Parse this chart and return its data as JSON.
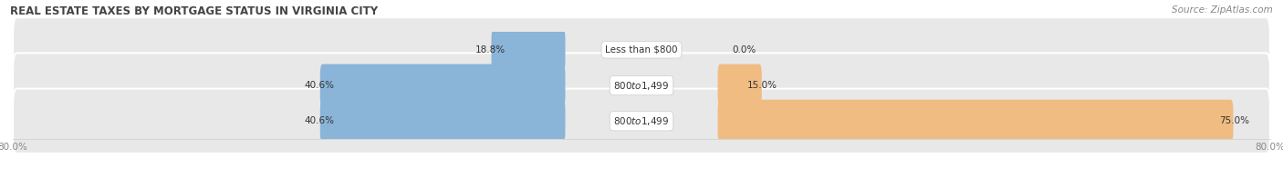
{
  "title": "REAL ESTATE TAXES BY MORTGAGE STATUS IN VIRGINIA CITY",
  "source": "Source: ZipAtlas.com",
  "rows": [
    {
      "label": "Less than $800",
      "without_mortgage": 18.8,
      "with_mortgage": 0.0
    },
    {
      "label": "$800 to $1,499",
      "without_mortgage": 40.6,
      "with_mortgage": 15.0
    },
    {
      "label": "$800 to $1,499",
      "without_mortgage": 40.6,
      "with_mortgage": 75.0
    }
  ],
  "x_max": 80.0,
  "xtick_labels": [
    "80.0%",
    "80.0%"
  ],
  "color_without": "#8ab4d8",
  "color_with": "#f0bc82",
  "color_row_bg": "#e8e8e8",
  "title_fontsize": 8.5,
  "source_fontsize": 7.5,
  "label_fontsize": 7.5,
  "pct_fontsize": 7.5,
  "tick_fontsize": 7.5,
  "legend_fontsize": 8
}
